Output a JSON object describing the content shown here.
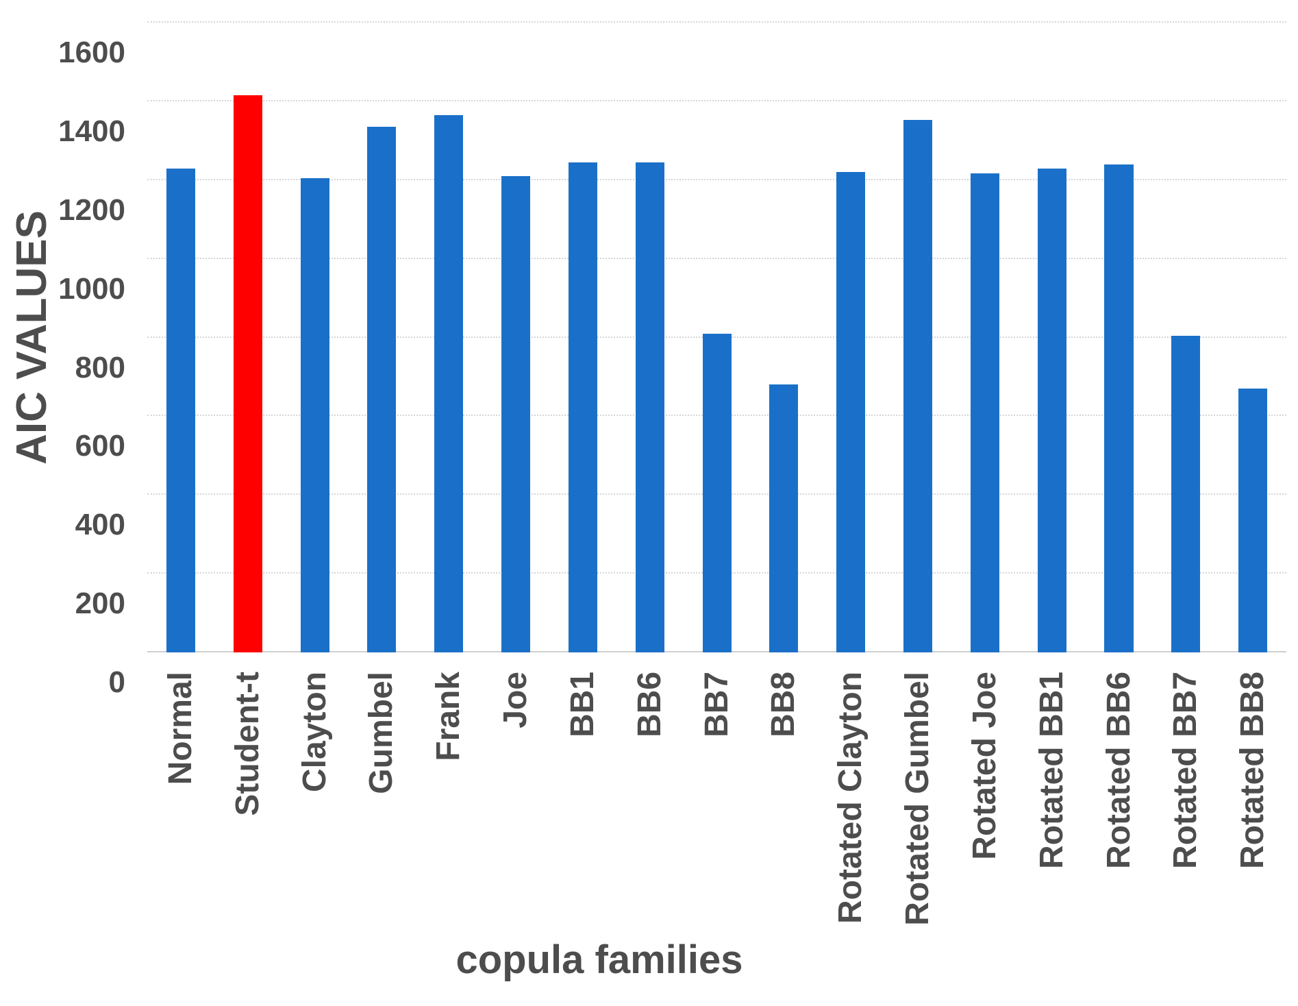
{
  "chart_data": {
    "type": "bar",
    "title": "",
    "xlabel": "copula families",
    "ylabel": "AIC VALUES",
    "categories": [
      "Normal",
      "Student-t",
      "Clayton",
      "Gumbel",
      "Frank",
      "Joe",
      "BB1",
      "BB6",
      "BB7",
      "BB8",
      "Rotated Clayton",
      "Rotated Gumbel",
      "Rotated Joe",
      "Rotated BB1",
      "Rotated BB6",
      "Rotated BB7",
      "Rotated BB8"
    ],
    "values": [
      1230,
      1415,
      1205,
      1335,
      1365,
      1210,
      1245,
      1245,
      810,
      680,
      1220,
      1352,
      1217,
      1230,
      1240,
      805,
      670
    ],
    "highlight_index": 1,
    "yticks": [
      0,
      200,
      400,
      600,
      800,
      1000,
      1200,
      1400,
      1600
    ],
    "ylim": [
      0,
      1600
    ],
    "grid": "horizontal-dotted",
    "legend": "none",
    "colors": {
      "bar": "#1a70c8",
      "highlight": "#fe0000",
      "grid": "#d5d5d5",
      "text": "#4d4d4d",
      "background": "#ffffff"
    }
  }
}
